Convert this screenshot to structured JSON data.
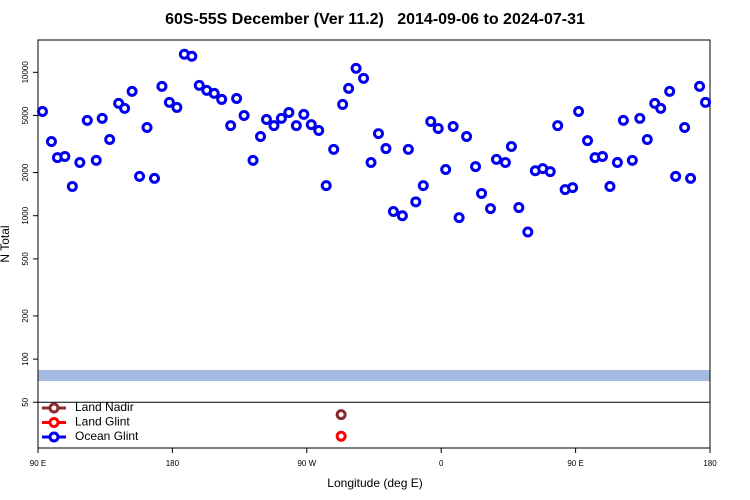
{
  "chart_data": {
    "type": "scatter",
    "title": "60S-55S December (Ver 11.2)   2014-09-06 to 2024-07-31",
    "xlabel": "Longitude (deg E)",
    "ylabel": "N Total",
    "xlim": [
      90,
      540
    ],
    "xticks": [
      {
        "value": 90,
        "label": "90 E"
      },
      180,
      {
        "value": 270,
        "label": "90 W"
      },
      {
        "value": 360,
        "label": "0"
      },
      {
        "value": 450,
        "label": "90 E"
      },
      {
        "value": 540,
        "label": "180"
      }
    ],
    "ylim": [
      24,
      16800
    ],
    "yticks": [
      50,
      100,
      200,
      500,
      1000,
      2000,
      5000,
      10000
    ],
    "log_y": true,
    "legend": "bottom left",
    "series": [
      {
        "name": "Land Nadir",
        "color": "#8b2a2a",
        "x": [
          293
        ],
        "values": [
          41
        ]
      },
      {
        "name": "Land Glint",
        "color": "#ff0000",
        "x": [
          293
        ],
        "values": [
          29
        ]
      },
      {
        "name": "Ocean Glint",
        "color": "#0000ee",
        "x": [
          93,
          99,
          103,
          108,
          113,
          118,
          123,
          129,
          133,
          138,
          144,
          148,
          153,
          158,
          163,
          168,
          173,
          178,
          183,
          188,
          193,
          198,
          203,
          208,
          213,
          219,
          223,
          228,
          234,
          239,
          243,
          248,
          253,
          258,
          263,
          268,
          273,
          278,
          283,
          288,
          294,
          298,
          303,
          308,
          313,
          318,
          323,
          328,
          334,
          338,
          343,
          348,
          353,
          358,
          363,
          368,
          372,
          377,
          383,
          387,
          393,
          397,
          403,
          407,
          412,
          418,
          423,
          428,
          433,
          438,
          443,
          448,
          452,
          458,
          463,
          468,
          473,
          478,
          482,
          488,
          493,
          498,
          503,
          507,
          513,
          517,
          523,
          527,
          533,
          537
        ],
        "values": [
          5330,
          3290,
          2540,
          2590,
          1600,
          2350,
          4620,
          2430,
          4770,
          3400,
          6070,
          5600,
          7360,
          1880,
          4120,
          1820,
          7980,
          6170,
          5690,
          13370,
          12940,
          8110,
          7480,
          7130,
          6470,
          4250,
          6570,
          5000,
          2430,
          3570,
          4690,
          4250,
          4770,
          5250,
          4250,
          5090,
          4320,
          3930,
          1620,
          2900,
          5970,
          7730,
          10660,
          9080,
          2350,
          3740,
          2940,
          1070,
          1000,
          2900,
          1250,
          1620,
          4540,
          4060,
          2100,
          4190,
          970,
          3570,
          2200,
          1430,
          1120,
          2470,
          2350,
          3040,
          1140,
          770,
          2060,
          2130,
          2030,
          4250,
          1520,
          1570,
          5330,
          3340,
          2540,
          2590,
          1600,
          2350,
          4620,
          2430,
          4770,
          3400,
          6070,
          5600,
          7360,
          1880,
          4120,
          1820,
          7980,
          6170
        ]
      }
    ]
  }
}
